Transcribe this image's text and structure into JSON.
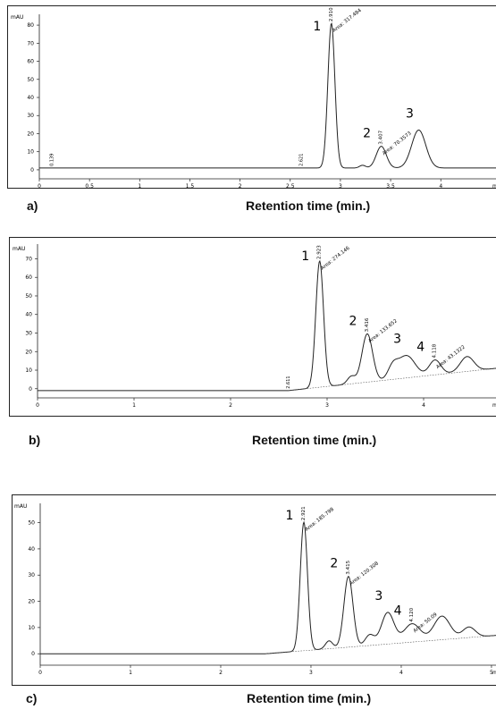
{
  "figure": {
    "panels": [
      {
        "letter": "a)",
        "xlabel": "Retention time (min.)"
      },
      {
        "letter": "b)",
        "xlabel": "Retention time (min.)"
      },
      {
        "letter": "c)",
        "xlabel": "Retention time (min.)"
      }
    ]
  },
  "chart_data": [
    {
      "type": "line",
      "y_unit": "mAU",
      "x_unit": "min",
      "xlim": [
        0,
        4.55
      ],
      "ylim": [
        -3,
        84
      ],
      "x_ticks": [
        "0",
        "0.5",
        "1",
        "1.5",
        "2",
        "2.5",
        "3",
        "3.5",
        "4"
      ],
      "y_ticks": [
        "0",
        "10",
        "20",
        "30",
        "40",
        "50",
        "60",
        "70",
        "80"
      ],
      "grid": false,
      "baseline": 1,
      "peaks": [
        {
          "label": "1",
          "rt": 2.91,
          "height": 80,
          "width": 0.035,
          "rt_label": "2.910",
          "area_label": "Area: 317.484"
        },
        {
          "label": "2",
          "rt": 3.407,
          "height": 12,
          "width": 0.05,
          "rt_label": "3.407",
          "area_label": "Area: 70.3573"
        },
        {
          "label": "3",
          "rt": 3.78,
          "height": 21,
          "width": 0.07,
          "rt_label": "",
          "area_label": ""
        }
      ],
      "minor_peaks": [
        {
          "rt": 3.22,
          "height": 1.5,
          "width": 0.03
        }
      ],
      "rt_markers": [
        {
          "rt": 0.139,
          "label": "0.139"
        },
        {
          "rt": 2.621,
          "label": "2.621"
        }
      ]
    },
    {
      "type": "line",
      "y_unit": "mAU",
      "x_unit": "min",
      "xlim": [
        0,
        4.75
      ],
      "ylim": [
        -3,
        76
      ],
      "x_ticks": [
        "0",
        "1",
        "2",
        "3",
        "4"
      ],
      "y_ticks": [
        "0",
        "10",
        "20",
        "30",
        "40",
        "50",
        "60",
        "70"
      ],
      "grid": false,
      "baseline": -1,
      "drift": {
        "start": 2.6,
        "end": 4.75,
        "rise": 12
      },
      "peaks": [
        {
          "label": "1",
          "rt": 2.923,
          "height": 68,
          "width": 0.04,
          "rt_label": "2.923",
          "area_label": "Area: 274.146"
        },
        {
          "label": "2",
          "rt": 3.416,
          "height": 26,
          "width": 0.055,
          "rt_label": "3.416",
          "area_label": "Area: 133.652"
        },
        {
          "label": "3",
          "rt": 3.82,
          "height": 12,
          "width": 0.09,
          "rt_label": "",
          "area_label": ""
        },
        {
          "label": "4",
          "rt": 4.118,
          "height": 8,
          "width": 0.06,
          "rt_label": "4.118",
          "area_label": "Area: 43.1322"
        }
      ],
      "minor_peaks": [
        {
          "rt": 3.25,
          "height": 4,
          "width": 0.04
        },
        {
          "rt": 3.68,
          "height": 6,
          "width": 0.05
        },
        {
          "rt": 4.45,
          "height": 8,
          "width": 0.07
        }
      ],
      "rt_markers": [
        {
          "rt": 2.611,
          "label": "2.611"
        }
      ]
    },
    {
      "type": "line",
      "y_unit": "mAU",
      "x_unit": "min",
      "xlim": [
        0,
        5.05
      ],
      "ylim": [
        -3,
        56
      ],
      "x_ticks": [
        "0",
        "1",
        "2",
        "3",
        "4",
        "5"
      ],
      "y_ticks": [
        "0",
        "10",
        "20",
        "30",
        "40",
        "50"
      ],
      "grid": false,
      "baseline": 0,
      "drift": {
        "start": 2.5,
        "end": 5.05,
        "rise": 7
      },
      "peaks": [
        {
          "label": "1",
          "rt": 2.921,
          "height": 49,
          "width": 0.04,
          "rt_label": "2.921",
          "area_label": "Area: 185.798"
        },
        {
          "label": "2",
          "rt": 3.415,
          "height": 27,
          "width": 0.05,
          "rt_label": "3.415",
          "area_label": "Area: 120.308"
        },
        {
          "label": "3",
          "rt": 3.85,
          "height": 12,
          "width": 0.07,
          "rt_label": "",
          "area_label": ""
        },
        {
          "label": "4",
          "rt": 4.12,
          "height": 7,
          "width": 0.09,
          "rt_label": "4.120",
          "area_label": "Area: 50.09"
        }
      ],
      "minor_peaks": [
        {
          "rt": 3.2,
          "height": 3,
          "width": 0.04
        },
        {
          "rt": 3.65,
          "height": 4,
          "width": 0.05
        },
        {
          "rt": 4.45,
          "height": 9,
          "width": 0.09
        },
        {
          "rt": 4.75,
          "height": 4,
          "width": 0.07
        }
      ],
      "rt_markers": [
        {
          "rt": 2.5,
          "label": ""
        }
      ]
    }
  ]
}
